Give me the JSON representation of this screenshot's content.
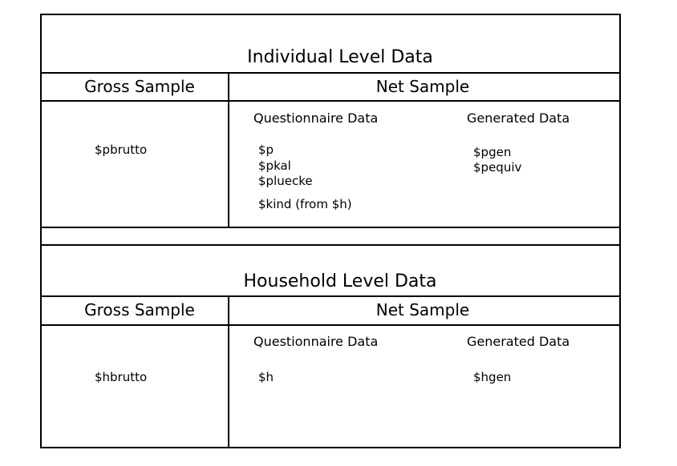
{
  "individual": {
    "title": "Individual Level Data",
    "gross_label": "Gross Sample",
    "net_label": "Net Sample",
    "gross_files": [
      "$pbrutto"
    ],
    "questionnaire_label": "Questionnaire Data",
    "generated_label": "Generated Data",
    "questionnaire_files": [
      "$p",
      "$pkal",
      "$pluecke"
    ],
    "questionnaire_extra": "$kind (from $h)",
    "generated_files": [
      "$pgen",
      "$pequiv"
    ]
  },
  "household": {
    "title": "Household Level Data",
    "gross_label": "Gross Sample",
    "net_label": "Net Sample",
    "gross_files": [
      "$hbrutto"
    ],
    "questionnaire_label": "Questionnaire Data",
    "generated_label": "Generated Data",
    "questionnaire_files": [
      "$h"
    ],
    "generated_files": [
      "$hgen"
    ]
  },
  "colors": {
    "line": "#000000",
    "background": "#ffffff"
  }
}
